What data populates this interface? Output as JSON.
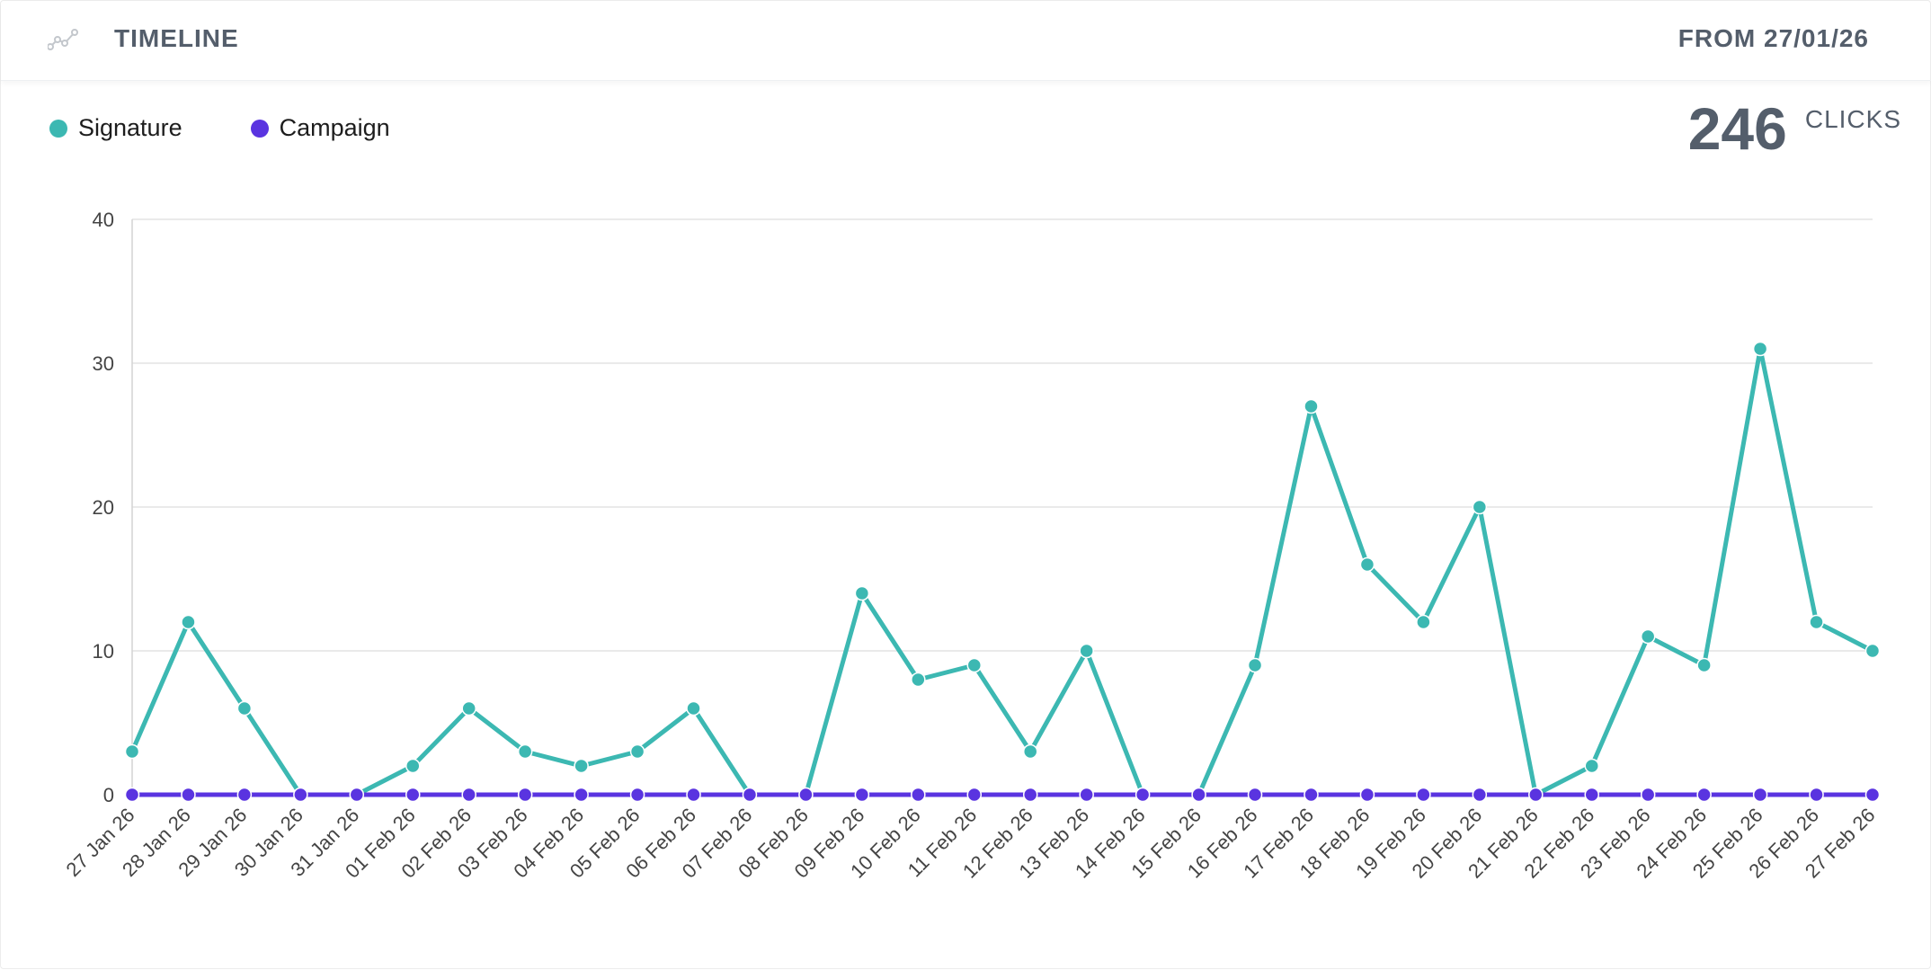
{
  "header": {
    "title": "TIMELINE",
    "range": "FROM 27/01/26",
    "icon": "line-chart-icon"
  },
  "legend": [
    {
      "label": "Signature",
      "color": "#3cb8b2"
    },
    {
      "label": "Campaign",
      "color": "#5a34e0"
    }
  ],
  "total": {
    "value": "246",
    "unit": "CLICKS"
  },
  "chart_data": {
    "type": "line",
    "title": "",
    "xlabel": "",
    "ylabel": "",
    "ylim": [
      0,
      40
    ],
    "yticks": [
      0,
      10,
      20,
      30,
      40
    ],
    "grid": true,
    "legend_position": "top-left",
    "categories": [
      "27 Jan 26",
      "28 Jan 26",
      "29 Jan 26",
      "30 Jan 26",
      "31 Jan 26",
      "01 Feb 26",
      "02 Feb 26",
      "03 Feb 26",
      "04 Feb 26",
      "05 Feb 26",
      "06 Feb 26",
      "07 Feb 26",
      "08 Feb 26",
      "09 Feb 26",
      "10 Feb 26",
      "11 Feb 26",
      "12 Feb 26",
      "13 Feb 26",
      "14 Feb 26",
      "15 Feb 26",
      "16 Feb 26",
      "17 Feb 26",
      "18 Feb 26",
      "19 Feb 26",
      "20 Feb 26",
      "21 Feb 26",
      "22 Feb 26",
      "23 Feb 26",
      "24 Feb 26",
      "25 Feb 26",
      "26 Feb 26",
      "27 Feb 26"
    ],
    "series": [
      {
        "name": "Signature",
        "color": "#3cb8b2",
        "values": [
          3,
          12,
          6,
          0,
          0,
          2,
          6,
          3,
          2,
          3,
          6,
          0,
          0,
          14,
          8,
          9,
          3,
          10,
          0,
          0,
          9,
          27,
          16,
          12,
          20,
          0,
          2,
          11,
          9,
          31,
          12,
          10
        ]
      },
      {
        "name": "Campaign",
        "color": "#5a34e0",
        "values": [
          0,
          0,
          0,
          0,
          0,
          0,
          0,
          0,
          0,
          0,
          0,
          0,
          0,
          0,
          0,
          0,
          0,
          0,
          0,
          0,
          0,
          0,
          0,
          0,
          0,
          0,
          0,
          0,
          0,
          0,
          0,
          0
        ]
      }
    ]
  }
}
